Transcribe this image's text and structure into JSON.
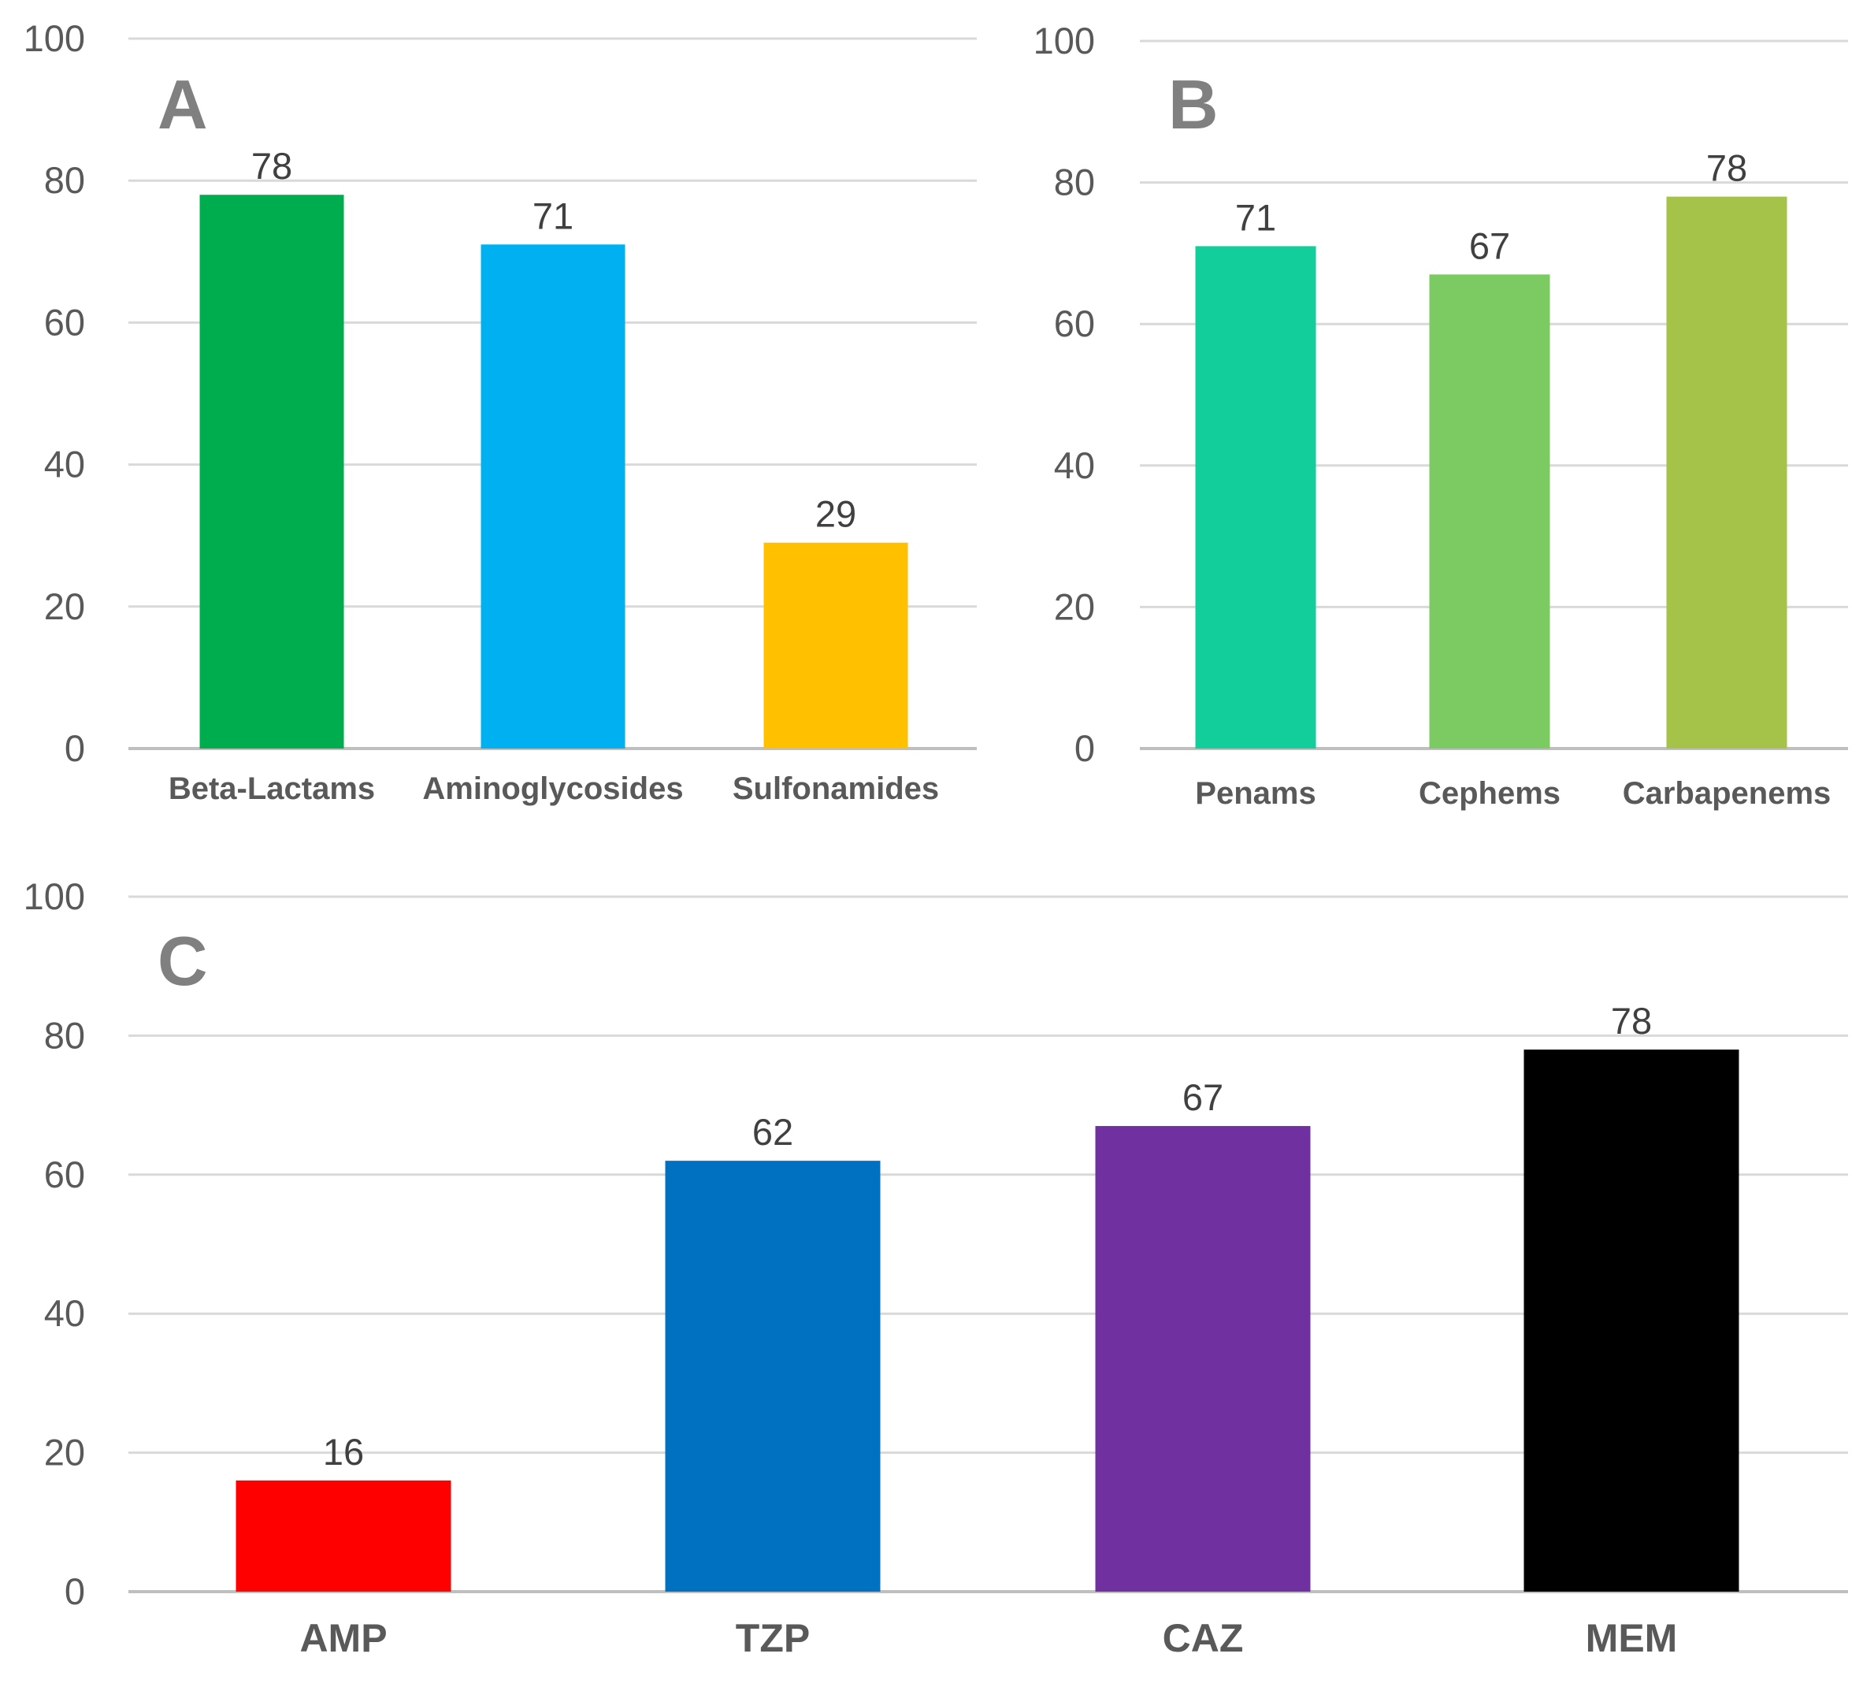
{
  "chart_data": [
    {
      "panel": "A",
      "type": "bar",
      "title": "A",
      "xlabel": "",
      "ylabel": "",
      "ylim": [
        0,
        100
      ],
      "yticks": [
        0,
        20,
        40,
        60,
        80,
        100
      ],
      "grid": true,
      "categories": [
        "Beta-Lactams",
        "Aminoglycosides",
        "Sulfonamides"
      ],
      "values": [
        78,
        71,
        29
      ],
      "data_labels": [
        "78",
        "71",
        "29"
      ],
      "colors": [
        "#00AD4E",
        "#00B0F0",
        "#FFC000"
      ]
    },
    {
      "panel": "B",
      "type": "bar",
      "title": "B",
      "xlabel": "",
      "ylabel": "",
      "ylim": [
        0,
        100
      ],
      "yticks": [
        0,
        20,
        40,
        60,
        80,
        100
      ],
      "grid": true,
      "categories": [
        "Penams",
        "Cephems",
        "Carbapenems"
      ],
      "values": [
        71,
        67,
        78
      ],
      "data_labels": [
        "71",
        "67",
        "78"
      ],
      "colors": [
        "#12CE9A",
        "#7CCA62",
        "#A5C249"
      ]
    },
    {
      "panel": "C",
      "type": "bar",
      "title": "C",
      "xlabel": "",
      "ylabel": "",
      "ylim": [
        0,
        100
      ],
      "yticks": [
        0,
        20,
        40,
        60,
        80,
        100
      ],
      "grid": true,
      "categories": [
        "AMP",
        "TZP",
        "CAZ",
        "MEM"
      ],
      "values": [
        16,
        62,
        67,
        78
      ],
      "data_labels": [
        "16",
        "62",
        "67",
        "78"
      ],
      "colors": [
        "#FF0000",
        "#0070C0",
        "#7030A0",
        "#000000"
      ]
    }
  ]
}
